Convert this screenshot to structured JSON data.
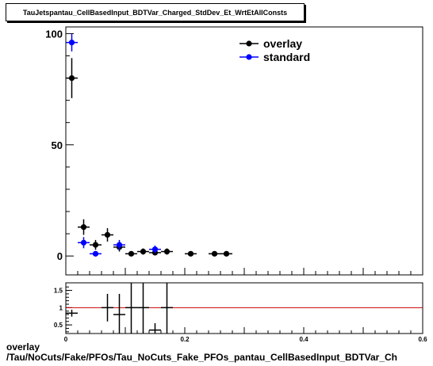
{
  "title": "TauJetspantau_CellBasedInput_BDTVar_Charged_StdDev_Et_WrtEtAllConsts",
  "footer": {
    "line1": "overlay",
    "line2": "/Tau/NoCuts/Fake/PFOs/Tau_NoCuts_Fake_PFOs_pantau_CellBasedInput_BDTVar_Ch"
  },
  "colors": {
    "overlay": "#000000",
    "standard": "#0000ff",
    "ratio_line": "#cc0000"
  },
  "chart_data": [
    {
      "type": "scatter",
      "title": "TauJetspantau_CellBasedInput_BDTVar_Charged_StdDev_Et_WrtEtAllConsts",
      "xlim": [
        0,
        0.6
      ],
      "ylim": [
        -8.5,
        103
      ],
      "yticks": [
        0,
        50,
        100
      ],
      "legend": "top-right",
      "series": [
        {
          "name": "overlay",
          "x": [
            0.01,
            0.03,
            0.05,
            0.07,
            0.09,
            0.11,
            0.13,
            0.15,
            0.17,
            0.21,
            0.25,
            0.27
          ],
          "y": [
            80,
            13,
            5,
            9.5,
            4,
            1,
            2,
            1.5,
            2,
            1,
            1,
            1
          ],
          "yerr": [
            9,
            3.5,
            2.2,
            3,
            2,
            1,
            1.4,
            1.2,
            1.4,
            1,
            1,
            1
          ]
        },
        {
          "name": "standard",
          "x": [
            0.01,
            0.03,
            0.05,
            0.09,
            0.15
          ],
          "y": [
            96,
            6,
            1,
            5,
            3
          ],
          "yerr": [
            4,
            2.5,
            1,
            2.2,
            1.7
          ]
        }
      ]
    },
    {
      "type": "scatter",
      "title": "",
      "xlim": [
        0,
        0.6
      ],
      "ylim": [
        0.25,
        1.72
      ],
      "xticks": [
        0,
        0.2,
        0.4,
        0.6
      ],
      "xticklabels": [
        "0",
        "0.2",
        "0.4",
        "0.6"
      ],
      "yticks": [
        0.5,
        1,
        1.5
      ],
      "yticklabels": [
        "0.5",
        "1",
        "1.5"
      ],
      "reference_line": 1,
      "series": [
        {
          "name": "ratio",
          "x": [
            0.01,
            0.07,
            0.09,
            0.11,
            0.13,
            0.15,
            0.17
          ],
          "y": [
            0.84,
            1.0,
            0.8,
            1.0,
            1.0,
            0.35,
            1.0
          ],
          "yerr": [
            0.1,
            0.4,
            0.6,
            0.8,
            1.0,
            0.2,
            0.9
          ]
        }
      ]
    }
  ]
}
